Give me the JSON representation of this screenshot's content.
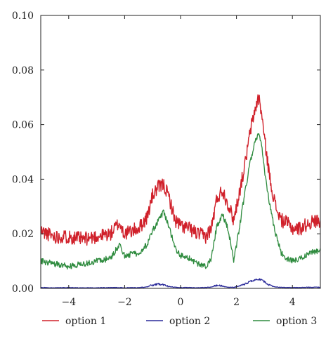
{
  "chart_data": {
    "type": "line",
    "title": "",
    "xlabel": "",
    "ylabel": "",
    "xlim": [
      -5,
      5
    ],
    "ylim": [
      0,
      0.1
    ],
    "x_ticks": [
      -4,
      -2,
      0,
      2,
      4
    ],
    "x_tick_labels": [
      "−4",
      "−2",
      "0",
      "2",
      "4"
    ],
    "y_ticks": [
      0,
      0.02,
      0.04,
      0.06,
      0.08,
      0.1
    ],
    "y_tick_labels": [
      "0.00",
      "0.02",
      "0.04",
      "0.06",
      "0.08",
      "0.10"
    ],
    "grid": false,
    "legend_position": "bottom",
    "x": [
      -5.0,
      -4.5,
      -4.0,
      -3.5,
      -3.0,
      -2.5,
      -2.2,
      -2.0,
      -1.5,
      -1.2,
      -1.0,
      -0.8,
      -0.6,
      -0.4,
      -0.2,
      0.0,
      0.3,
      0.6,
      0.9,
      1.1,
      1.3,
      1.5,
      1.7,
      1.9,
      2.1,
      2.3,
      2.5,
      2.7,
      2.8,
      2.9,
      3.0,
      3.2,
      3.4,
      3.6,
      3.8,
      4.0,
      4.3,
      4.6,
      5.0
    ],
    "series": [
      {
        "name": "option 1",
        "color": "#d0202a",
        "values": [
          0.021,
          0.019,
          0.019,
          0.018,
          0.019,
          0.02,
          0.024,
          0.02,
          0.022,
          0.026,
          0.034,
          0.037,
          0.038,
          0.033,
          0.025,
          0.023,
          0.022,
          0.02,
          0.019,
          0.022,
          0.033,
          0.036,
          0.031,
          0.025,
          0.035,
          0.045,
          0.058,
          0.067,
          0.07,
          0.064,
          0.055,
          0.04,
          0.03,
          0.025,
          0.024,
          0.022,
          0.022,
          0.024,
          0.025
        ]
      },
      {
        "name": "option 2",
        "color": "#2a2a9a",
        "values": [
          0.0003,
          0.0002,
          0.0003,
          0.0002,
          0.0002,
          0.0003,
          0.0003,
          0.0002,
          0.0003,
          0.0005,
          0.0012,
          0.0016,
          0.0012,
          0.0007,
          0.0004,
          0.0003,
          0.0003,
          0.0002,
          0.0003,
          0.0005,
          0.0011,
          0.0008,
          0.0004,
          0.0004,
          0.0008,
          0.0016,
          0.0025,
          0.0032,
          0.0034,
          0.003,
          0.0024,
          0.001,
          0.0005,
          0.0004,
          0.0003,
          0.0003,
          0.0003,
          0.0004,
          0.0004
        ]
      },
      {
        "name": "option 3",
        "color": "#2e8b3e",
        "values": [
          0.01,
          0.009,
          0.008,
          0.009,
          0.01,
          0.011,
          0.016,
          0.012,
          0.013,
          0.016,
          0.021,
          0.025,
          0.028,
          0.022,
          0.015,
          0.012,
          0.011,
          0.009,
          0.008,
          0.011,
          0.023,
          0.027,
          0.022,
          0.01,
          0.022,
          0.035,
          0.047,
          0.055,
          0.057,
          0.052,
          0.043,
          0.03,
          0.02,
          0.013,
          0.011,
          0.01,
          0.011,
          0.013,
          0.014
        ]
      }
    ]
  }
}
